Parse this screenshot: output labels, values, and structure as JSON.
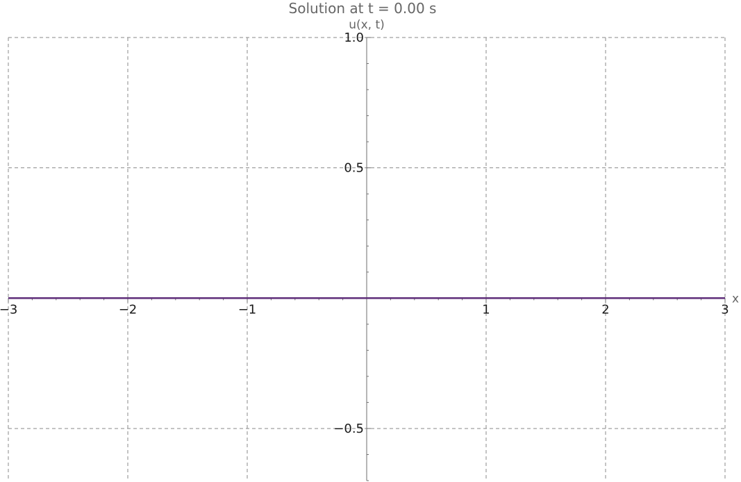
{
  "chart_data": {
    "type": "line",
    "title": "Solution at t = 0.00 s",
    "xlabel": "x",
    "ylabel": "u(x, t)",
    "xlim": [
      -3,
      3
    ],
    "ylim": [
      -0.7,
      1.0
    ],
    "x_ticks": [
      {
        "value": -3,
        "label": "−3"
      },
      {
        "value": -2,
        "label": "−2"
      },
      {
        "value": -1,
        "label": "−1"
      },
      {
        "value": 1,
        "label": "1"
      },
      {
        "value": 2,
        "label": "2"
      },
      {
        "value": 3,
        "label": "3"
      }
    ],
    "y_ticks": [
      {
        "value": -0.5,
        "label": "−0.5"
      },
      {
        "value": 0.5,
        "label": "0.5"
      },
      {
        "value": 1.0,
        "label": "1.0"
      }
    ],
    "x_minor_step": 0.2,
    "y_minor_step": 0.1,
    "grid": true,
    "series": [
      {
        "color": "#5e2d79",
        "x": [
          -3,
          -2,
          -1,
          0,
          1,
          2,
          3
        ],
        "y": [
          0,
          0,
          0,
          0,
          0,
          0,
          0
        ]
      }
    ]
  }
}
